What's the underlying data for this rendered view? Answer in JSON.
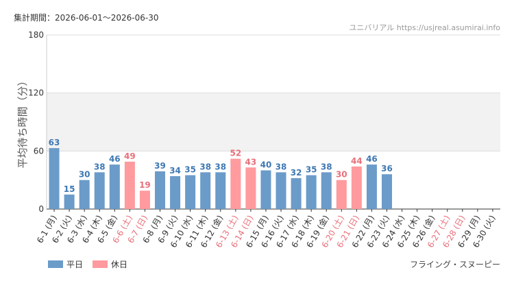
{
  "chart_data": {
    "type": "bar",
    "subtitle": "集計期間：2026-06-01〜2026-06-30",
    "source": "ユニバリアル  https://usjreal.asumirai.info",
    "y_label": "平均待ち時間（分）",
    "caption": "フライング・スヌーピー",
    "categories": [
      "6-1 (月)",
      "6-2 (火)",
      "6-3 (水)",
      "6-4 (木)",
      "6-5 (金)",
      "6-6 (土)",
      "6-7 (日)",
      "6-8 (月)",
      "6-9 (火)",
      "6-10 (水)",
      "6-11 (木)",
      "6-12 (金)",
      "6-13 (土)",
      "6-14 (日)",
      "6-15 (月)",
      "6-16 (火)",
      "6-17 (水)",
      "6-18 (木)",
      "6-19 (金)",
      "6-20 (土)",
      "6-21 (日)",
      "6-22 (月)",
      "6-23 (火)",
      "6-24 (水)",
      "6-25 (木)",
      "6-26 (金)",
      "6-27 (土)",
      "6-28 (日)",
      "6-29 (月)",
      "6-30 (火)"
    ],
    "holidays": [
      false,
      false,
      false,
      false,
      false,
      true,
      true,
      false,
      false,
      false,
      false,
      false,
      true,
      true,
      false,
      false,
      false,
      false,
      false,
      true,
      true,
      false,
      false,
      false,
      false,
      false,
      true,
      true,
      false,
      false
    ],
    "series": [
      {
        "name": "平日",
        "color": "#6b9bc9",
        "label_color": "#3e78b3",
        "values": [
          63,
          15,
          30,
          38,
          46,
          null,
          null,
          39,
          34,
          35,
          38,
          38,
          null,
          null,
          40,
          38,
          32,
          35,
          38,
          null,
          null,
          46,
          36,
          null,
          null,
          null,
          null,
          null,
          null,
          null
        ]
      },
      {
        "name": "休日",
        "color": "#ff9a9e",
        "label_color": "#e8707a",
        "values": [
          null,
          null,
          null,
          null,
          null,
          49,
          19,
          null,
          null,
          null,
          null,
          null,
          52,
          43,
          null,
          null,
          null,
          null,
          null,
          30,
          44,
          null,
          null,
          null,
          null,
          null,
          null,
          null,
          null,
          null
        ]
      }
    ],
    "ylim": [
      0,
      180
    ],
    "yticks": [
      0,
      60,
      120,
      180
    ],
    "band": [
      60,
      120
    ],
    "grid": true
  }
}
